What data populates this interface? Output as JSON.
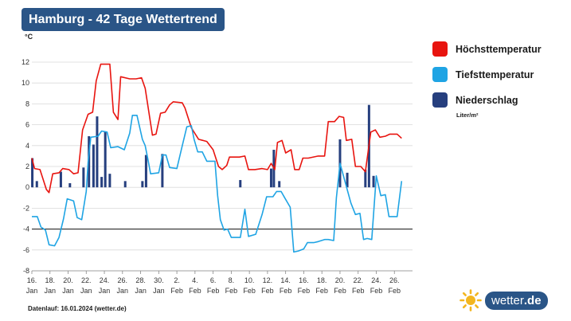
{
  "header": {
    "title": "Hamburg - 42 Tage Wettertrend",
    "unit": "°C"
  },
  "legend": {
    "items": [
      {
        "label": "Höchsttemperatur",
        "color": "#e8140f"
      },
      {
        "label": "Tiefsttemperatur",
        "color": "#1fa4e4"
      },
      {
        "label": "Niederschlag",
        "color": "#263f7e"
      }
    ],
    "precip_unit": "Liter/m²"
  },
  "footer": {
    "source": "Datenlauf: 16.01.2024 (wetter.de)"
  },
  "logo": {
    "text": "wetter",
    "suffix": ".de",
    "icon": "sun-icon"
  },
  "chart_data": {
    "type": "line",
    "title": "Hamburg - 42 Tage Wettertrend",
    "ylabel": "°C",
    "ylim": [
      -8,
      12
    ],
    "yticks": [
      -8,
      -6,
      -4,
      -2,
      0,
      2,
      4,
      6,
      8,
      10,
      12
    ],
    "xlim": [
      0,
      42
    ],
    "reference_line": -4,
    "grid": true,
    "legend_position": "right",
    "x_ticks": [
      {
        "x": 0,
        "day": "16.",
        "month": "Jan"
      },
      {
        "x": 2,
        "day": "18.",
        "month": "Jan"
      },
      {
        "x": 4,
        "day": "20.",
        "month": "Jan"
      },
      {
        "x": 6,
        "day": "22.",
        "month": "Jan"
      },
      {
        "x": 8,
        "day": "24.",
        "month": "Jan"
      },
      {
        "x": 10,
        "day": "26.",
        "month": "Jan"
      },
      {
        "x": 12,
        "day": "28.",
        "month": "Jan"
      },
      {
        "x": 14,
        "day": "30.",
        "month": "Jan"
      },
      {
        "x": 16,
        "day": "2.",
        "month": "Feb"
      },
      {
        "x": 18,
        "day": "4.",
        "month": "Feb"
      },
      {
        "x": 20,
        "day": "6.",
        "month": "Feb"
      },
      {
        "x": 22,
        "day": "8.",
        "month": "Feb"
      },
      {
        "x": 24,
        "day": "10.",
        "month": "Feb"
      },
      {
        "x": 26,
        "day": "12.",
        "month": "Feb"
      },
      {
        "x": 28,
        "day": "14.",
        "month": "Feb"
      },
      {
        "x": 30,
        "day": "16.",
        "month": "Feb"
      },
      {
        "x": 32,
        "day": "18.",
        "month": "Feb"
      },
      {
        "x": 34,
        "day": "20.",
        "month": "Feb"
      },
      {
        "x": 36,
        "day": "22.",
        "month": "Feb"
      },
      {
        "x": 38,
        "day": "24.",
        "month": "Feb"
      },
      {
        "x": 40,
        "day": "26.",
        "month": "Feb"
      }
    ],
    "series": [
      {
        "name": "Höchsttemperatur",
        "color": "#e8140f",
        "points": [
          [
            0,
            2.8
          ],
          [
            0.3,
            1.8
          ],
          [
            0.9,
            1.7
          ],
          [
            1.6,
            -0.2
          ],
          [
            1.9,
            -0.5
          ],
          [
            2.3,
            1.3
          ],
          [
            3,
            1.4
          ],
          [
            3.4,
            1.8
          ],
          [
            4.1,
            1.7
          ],
          [
            4.6,
            1.3
          ],
          [
            5.1,
            1.4
          ],
          [
            5.6,
            5.5
          ],
          [
            6.2,
            7
          ],
          [
            6.7,
            7.2
          ],
          [
            7.1,
            10.2
          ],
          [
            7.6,
            11.8
          ],
          [
            8.6,
            11.8
          ],
          [
            9,
            7.2
          ],
          [
            9.5,
            6.5
          ],
          [
            9.8,
            10.6
          ],
          [
            10.8,
            10.4
          ],
          [
            11.5,
            10.4
          ],
          [
            12.1,
            10.5
          ],
          [
            12.5,
            9.5
          ],
          [
            13.3,
            5
          ],
          [
            13.7,
            5.1
          ],
          [
            14.2,
            7.1
          ],
          [
            14.7,
            7.2
          ],
          [
            15.2,
            7.9
          ],
          [
            15.6,
            8.2
          ],
          [
            16.6,
            8.1
          ],
          [
            16.9,
            7.6
          ],
          [
            17.6,
            5.7
          ],
          [
            18.4,
            4.6
          ],
          [
            19.3,
            4.4
          ],
          [
            20,
            3.6
          ],
          [
            20.6,
            2
          ],
          [
            21,
            1.7
          ],
          [
            21.5,
            2.1
          ],
          [
            21.8,
            2.9
          ],
          [
            22.9,
            2.9
          ],
          [
            23.5,
            3
          ],
          [
            23.9,
            1.7
          ],
          [
            24.6,
            1.7
          ],
          [
            25.4,
            1.8
          ],
          [
            26,
            1.7
          ],
          [
            26.4,
            2.3
          ],
          [
            26.8,
            1.7
          ],
          [
            27.1,
            4.3
          ],
          [
            27.6,
            4.5
          ],
          [
            28,
            3.3
          ],
          [
            28.6,
            3.6
          ],
          [
            29,
            1.7
          ],
          [
            29.5,
            1.7
          ],
          [
            29.9,
            2.8
          ],
          [
            30.5,
            2.8
          ],
          [
            31.6,
            3
          ],
          [
            32.3,
            3
          ],
          [
            32.7,
            6.3
          ],
          [
            33.4,
            6.3
          ],
          [
            33.9,
            6.8
          ],
          [
            34.4,
            6.7
          ],
          [
            34.7,
            4.5
          ],
          [
            35.3,
            4.6
          ],
          [
            35.7,
            2
          ],
          [
            36.3,
            2
          ],
          [
            36.8,
            1.5
          ],
          [
            37.4,
            5.3
          ],
          [
            37.9,
            5.5
          ],
          [
            38.4,
            4.8
          ],
          [
            39,
            4.9
          ],
          [
            39.5,
            5.1
          ],
          [
            40.3,
            5.1
          ],
          [
            40.8,
            4.7
          ]
        ]
      },
      {
        "name": "Tiefsttemperatur",
        "color": "#1fa4e4",
        "points": [
          [
            0,
            -2.8
          ],
          [
            0.6,
            -2.8
          ],
          [
            1,
            -3.8
          ],
          [
            1.5,
            -4.1
          ],
          [
            1.9,
            -5.5
          ],
          [
            2.5,
            -5.6
          ],
          [
            3,
            -4.8
          ],
          [
            3.5,
            -3
          ],
          [
            3.9,
            -1.1
          ],
          [
            4.6,
            -1.3
          ],
          [
            5,
            -2.9
          ],
          [
            5.5,
            -3.1
          ],
          [
            6,
            -0.4
          ],
          [
            6.2,
            2.4
          ],
          [
            6.5,
            4.8
          ],
          [
            7.3,
            4.9
          ],
          [
            7.7,
            5.4
          ],
          [
            8.3,
            5.3
          ],
          [
            8.7,
            3.8
          ],
          [
            9.5,
            3.9
          ],
          [
            10.2,
            3.6
          ],
          [
            10.8,
            5.2
          ],
          [
            11.1,
            6.9
          ],
          [
            11.6,
            6.9
          ],
          [
            12.2,
            4.6
          ],
          [
            12.5,
            4
          ],
          [
            12.8,
            2.7
          ],
          [
            13.1,
            1.3
          ],
          [
            14,
            1.4
          ],
          [
            14.4,
            3.1
          ],
          [
            14.8,
            3.1
          ],
          [
            15.2,
            1.9
          ],
          [
            16,
            1.8
          ],
          [
            16.6,
            4
          ],
          [
            17.1,
            5.8
          ],
          [
            17.6,
            5.9
          ],
          [
            17.9,
            4.6
          ],
          [
            18.3,
            3.4
          ],
          [
            18.8,
            3.4
          ],
          [
            19.3,
            2.5
          ],
          [
            20.2,
            2.5
          ],
          [
            20.5,
            -0.8
          ],
          [
            20.8,
            -3.1
          ],
          [
            21.2,
            -4.1
          ],
          [
            21.6,
            -4
          ],
          [
            22,
            -4.8
          ],
          [
            23,
            -4.8
          ],
          [
            23.5,
            -2.1
          ],
          [
            23.9,
            -4.7
          ],
          [
            24.7,
            -4.5
          ],
          [
            25.4,
            -2.6
          ],
          [
            25.9,
            -0.9
          ],
          [
            26.6,
            -0.9
          ],
          [
            27,
            -0.4
          ],
          [
            27.5,
            -0.4
          ],
          [
            27.9,
            -1
          ],
          [
            28.5,
            -1.9
          ],
          [
            28.9,
            -6.2
          ],
          [
            29.4,
            -6.1
          ],
          [
            30,
            -5.9
          ],
          [
            30.4,
            -5.3
          ],
          [
            31.1,
            -5.3
          ],
          [
            31.6,
            -5.2
          ],
          [
            32.3,
            -5
          ],
          [
            32.7,
            -5
          ],
          [
            33.3,
            -5.1
          ],
          [
            33.6,
            -1
          ],
          [
            34,
            2.3
          ],
          [
            34.6,
            0.4
          ],
          [
            35.2,
            -1.5
          ],
          [
            35.7,
            -2.6
          ],
          [
            36.2,
            -2.5
          ],
          [
            36.6,
            -5
          ],
          [
            37,
            -4.9
          ],
          [
            37.5,
            -5
          ],
          [
            38,
            1.1
          ],
          [
            38.5,
            -0.8
          ],
          [
            39,
            -0.7
          ],
          [
            39.4,
            -2.8
          ],
          [
            40.3,
            -2.8
          ],
          [
            40.8,
            0.6
          ]
        ]
      }
    ],
    "precipitation": {
      "name": "Niederschlag",
      "unit": "Liter/m²",
      "color": "#263f7e",
      "bars": [
        [
          0.05,
          2.8
        ],
        [
          0.55,
          0.6
        ],
        [
          3.2,
          1.5
        ],
        [
          4.2,
          0.4
        ],
        [
          5.7,
          1.9
        ],
        [
          6.3,
          4.9
        ],
        [
          6.8,
          4.1
        ],
        [
          7.2,
          6.8
        ],
        [
          7.7,
          1
        ],
        [
          8.1,
          5.3
        ],
        [
          8.6,
          1.3
        ],
        [
          10.3,
          0.6
        ],
        [
          12.2,
          0.6
        ],
        [
          12.6,
          3.1
        ],
        [
          14.4,
          3.2
        ],
        [
          23,
          0.7
        ],
        [
          26.4,
          1.8
        ],
        [
          26.7,
          3.6
        ],
        [
          27.3,
          0.6
        ],
        [
          34,
          4.6
        ],
        [
          34.8,
          1.4
        ],
        [
          36.8,
          1.7
        ],
        [
          37.2,
          7.9
        ],
        [
          37.7,
          1.1
        ]
      ]
    }
  }
}
